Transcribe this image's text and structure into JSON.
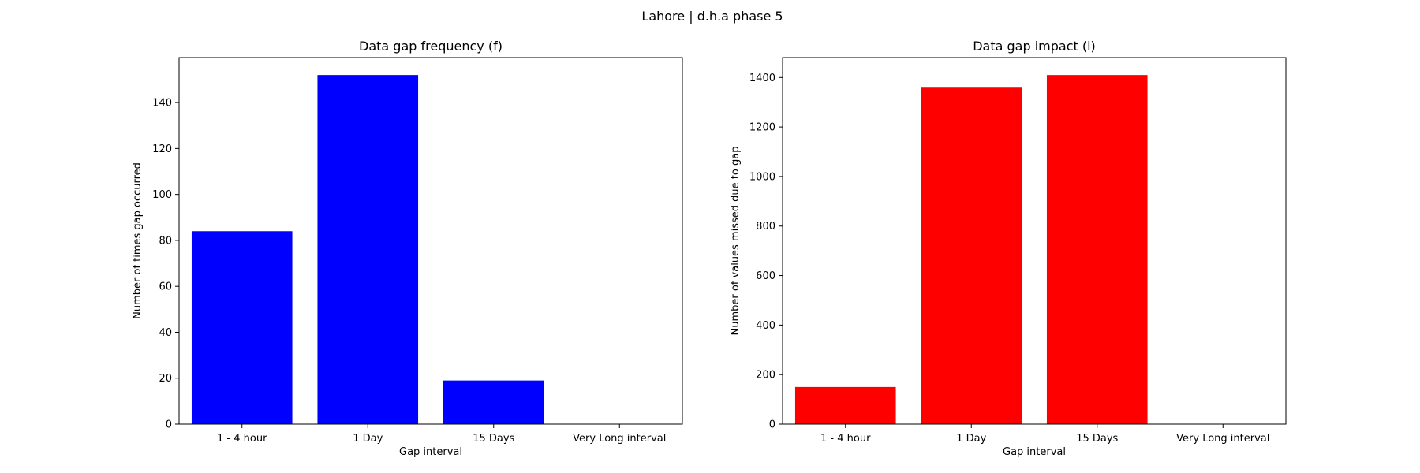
{
  "figure": {
    "suptitle": "Lahore | d.h.a phase 5"
  },
  "chart_data": [
    {
      "type": "bar",
      "title": "Data gap frequency (f)",
      "xlabel": "Gap interval",
      "ylabel": "Number of times gap occurred",
      "categories": [
        "1 - 4 hour",
        "1 Day",
        "15 Days",
        "Very Long interval"
      ],
      "values": [
        84,
        152,
        19,
        0
      ],
      "ylim": [
        0,
        159.6
      ],
      "yticks": [
        0,
        20,
        40,
        60,
        80,
        100,
        120,
        140
      ],
      "color": "#0000ff",
      "grid": false
    },
    {
      "type": "bar",
      "title": "Data gap impact (i)",
      "xlabel": "Gap interval",
      "ylabel": "Number of values missed due to gap",
      "categories": [
        "1 - 4 hour",
        "1 Day",
        "15 Days",
        "Very Long interval"
      ],
      "values": [
        150,
        1362,
        1410,
        0
      ],
      "ylim": [
        0,
        1480.5
      ],
      "yticks": [
        0,
        200,
        400,
        600,
        800,
        1000,
        1200,
        1400
      ],
      "color": "#ff0000",
      "grid": false
    }
  ]
}
